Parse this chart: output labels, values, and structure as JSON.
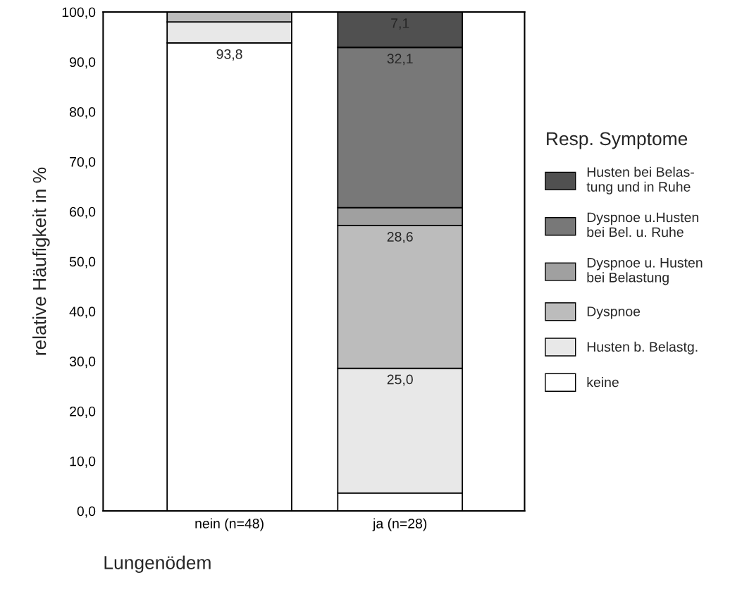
{
  "chart_data": {
    "type": "bar",
    "stacked": true,
    "xlabel": "Lungenödem",
    "ylabel": "relative Häufigkeit in %",
    "legend_title": "Resp. Symptome",
    "legend": "right",
    "grid": false,
    "categories": [
      "nein (n=48)",
      "ja (n=28)"
    ],
    "ylim": [
      0,
      100
    ],
    "yticks": [
      {
        "value": 0,
        "label": "0,0"
      },
      {
        "value": 10,
        "label": "10,0"
      },
      {
        "value": 20,
        "label": "20,0"
      },
      {
        "value": 30,
        "label": "30,0"
      },
      {
        "value": 40,
        "label": "40,0"
      },
      {
        "value": 50,
        "label": "50,0"
      },
      {
        "value": 60,
        "label": "60,0"
      },
      {
        "value": 70,
        "label": "70,0"
      },
      {
        "value": 80,
        "label": "80,0"
      },
      {
        "value": 90,
        "label": "90,0"
      },
      {
        "value": 100,
        "label": "100,0"
      }
    ],
    "series": [
      {
        "name": "keine",
        "color": "#ffffff",
        "values": [
          93.8,
          3.6
        ],
        "value_labels": [
          "93,8",
          null
        ]
      },
      {
        "name": "Husten b. Belastg.",
        "color": "#e8e8e8",
        "values": [
          4.2,
          25.0
        ],
        "value_labels": [
          null,
          "25,0"
        ]
      },
      {
        "name": "Dyspnoe",
        "color": "#bcbcbc",
        "values": [
          2.0,
          28.6
        ],
        "value_labels": [
          null,
          "28,6"
        ]
      },
      {
        "name": "Dyspnoe u. Husten\nbei Belastung",
        "color": "#a0a0a0",
        "values": [
          0,
          3.6
        ],
        "value_labels": [
          null,
          null
        ]
      },
      {
        "name": "Dyspnoe u.Husten\nbei Bel. u. Ruhe",
        "color": "#787878",
        "values": [
          0,
          32.1
        ],
        "value_labels": [
          null,
          "32,1"
        ]
      },
      {
        "name": "Husten bei Belas-\ntung und in Ruhe",
        "color": "#505050",
        "values": [
          0,
          7.1
        ],
        "value_labels": [
          null,
          "7,1"
        ]
      }
    ]
  }
}
